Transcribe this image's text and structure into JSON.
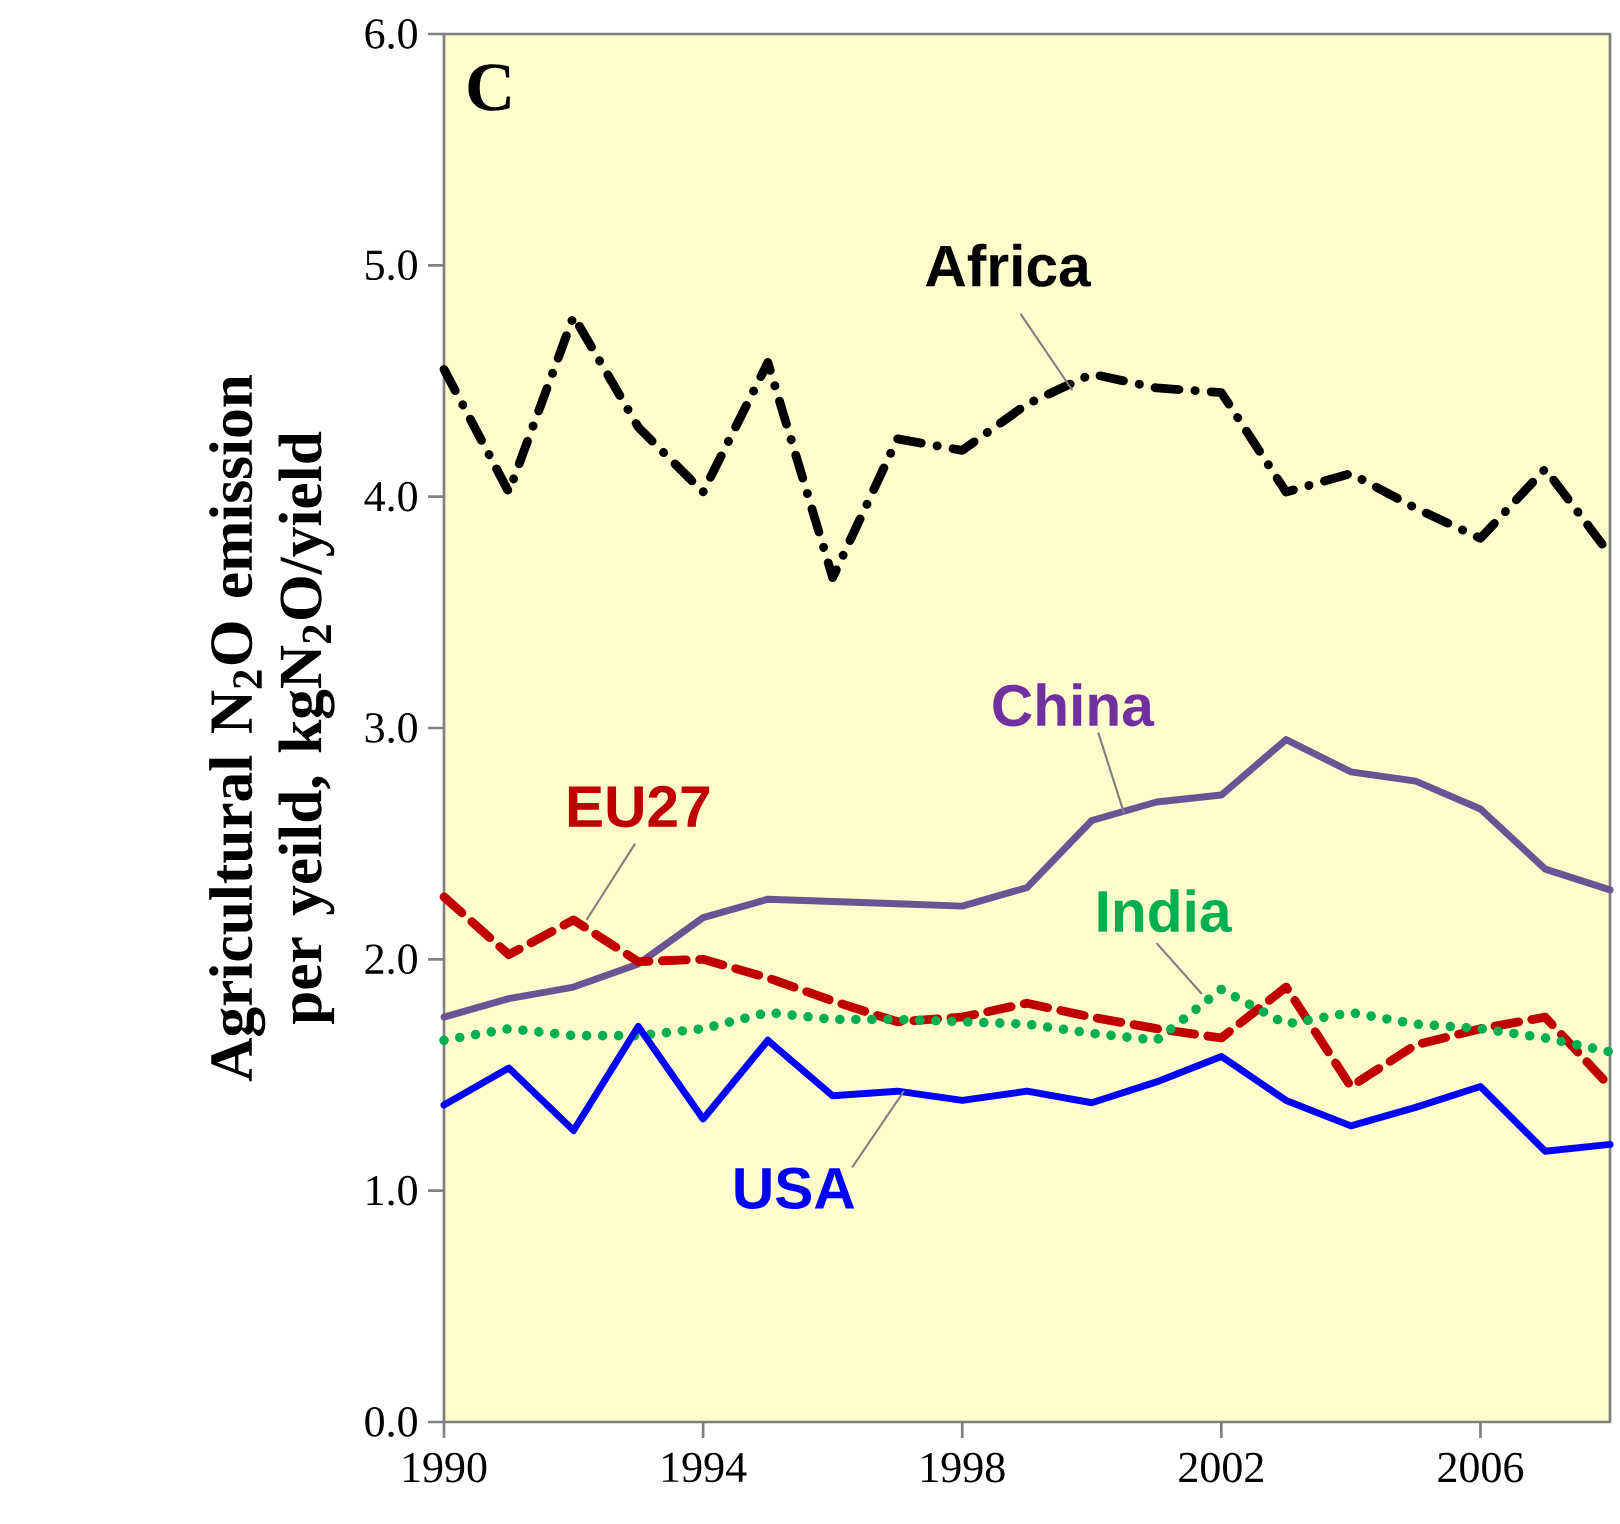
{
  "chart_data": {
    "type": "line",
    "ylabel": "Agricultural N$_{2}$O emission per yeild, kgN$_{2}$O/yield",
    "annotations": [
      "C"
    ],
    "x": [
      1990,
      1991,
      1992,
      1993,
      1994,
      1995,
      1996,
      1997,
      1998,
      1999,
      2000,
      2001,
      2002,
      2003,
      2004,
      2005,
      2006,
      2007,
      2008
    ],
    "xlim": [
      1990,
      2008
    ],
    "xticks": [
      1990,
      1994,
      1998,
      2002,
      2006
    ],
    "ylim": [
      0,
      6
    ],
    "yticks": [
      {
        "value": 0,
        "label": "0.0"
      },
      {
        "value": 1,
        "label": "1.0"
      },
      {
        "value": 2,
        "label": "2.0"
      },
      {
        "value": 3,
        "label": "3.0"
      },
      {
        "value": 4,
        "label": "4.0"
      },
      {
        "value": 5,
        "label": "5.0"
      },
      {
        "value": 6,
        "label": "6.0"
      }
    ],
    "grid": false,
    "legend": false,
    "marker": "none",
    "series": [
      {
        "name": "Africa",
        "color": "#000000",
        "line_style": "dashdot",
        "values": [
          4.55,
          4.02,
          4.78,
          4.3,
          4.02,
          4.58,
          3.65,
          4.25,
          4.2,
          4.4,
          4.53,
          4.47,
          4.45,
          4.02,
          4.1,
          3.95,
          3.82,
          4.12,
          3.75
        ]
      },
      {
        "name": "China",
        "color": "#6b5394",
        "line_style": "solid",
        "values": [
          1.75,
          1.83,
          1.88,
          1.98,
          2.18,
          2.26,
          2.25,
          2.24,
          2.23,
          2.31,
          2.6,
          2.68,
          2.71,
          2.95,
          2.81,
          2.77,
          2.65,
          2.39,
          2.3
        ]
      },
      {
        "name": "EU27",
        "color": "#c00000",
        "line_style": "dashed",
        "values": [
          2.27,
          2.02,
          2.17,
          1.99,
          2.0,
          1.92,
          1.82,
          1.73,
          1.75,
          1.81,
          1.75,
          1.7,
          1.66,
          1.88,
          1.45,
          1.63,
          1.7,
          1.75,
          1.45
        ]
      },
      {
        "name": "India",
        "color": "#00b050",
        "line_style": "dotted",
        "values": [
          1.65,
          1.7,
          1.67,
          1.67,
          1.7,
          1.77,
          1.74,
          1.74,
          1.73,
          1.72,
          1.68,
          1.65,
          1.87,
          1.72,
          1.77,
          1.72,
          1.7,
          1.66,
          1.6
        ]
      },
      {
        "name": "USA",
        "color": "#0000ff",
        "line_style": "solid",
        "values": [
          1.37,
          1.53,
          1.26,
          1.71,
          1.31,
          1.65,
          1.41,
          1.43,
          1.39,
          1.43,
          1.38,
          1.47,
          1.58,
          1.39,
          1.28,
          1.36,
          1.45,
          1.17,
          1.2
        ]
      }
    ]
  }
}
